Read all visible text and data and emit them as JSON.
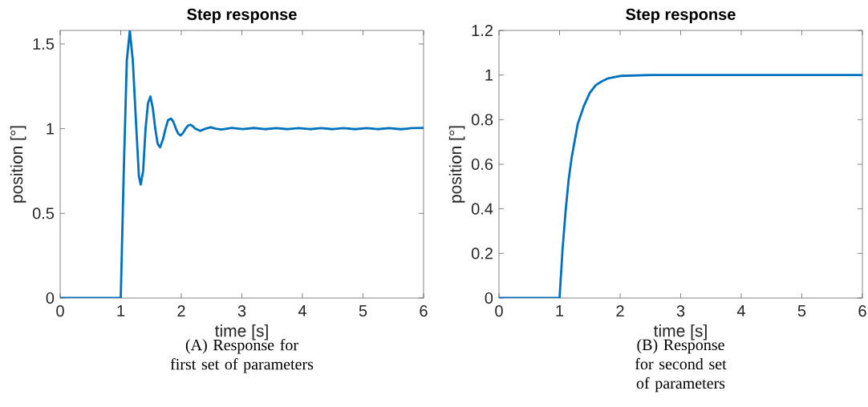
{
  "chart_data": [
    {
      "type": "line",
      "title": "Step response",
      "xlabel": "time [s]",
      "ylabel": "position [°]",
      "annotations": [
        "(A) Response for first set of parameters"
      ],
      "xlim": [
        0,
        6
      ],
      "ylim": [
        0,
        1.58
      ],
      "xticks": [
        0,
        1,
        2,
        3,
        4,
        5,
        6
      ],
      "yticks": [
        0,
        0.5,
        1,
        1.5
      ],
      "x": [
        0,
        1.0,
        1.05,
        1.1,
        1.15,
        1.2,
        1.25,
        1.3,
        1.33,
        1.37,
        1.41,
        1.45,
        1.49,
        1.53,
        1.57,
        1.61,
        1.65,
        1.7,
        1.74,
        1.78,
        1.83,
        1.87,
        1.91,
        1.95,
        1.99,
        2.03,
        2.07,
        2.11,
        2.15,
        2.19,
        2.23,
        2.31,
        2.4,
        2.48,
        2.57,
        2.66,
        2.75,
        2.83,
        3.01,
        3.2,
        3.38,
        3.57,
        3.76,
        3.94,
        4.12,
        4.31,
        4.5,
        4.68,
        4.87,
        5.06,
        5.24,
        5.43,
        5.62,
        5.81,
        6
      ],
      "series": [
        {
          "color": "#0072bd",
          "values": [
            0,
            0,
            0.75,
            1.4,
            1.58,
            1.4,
            1.05,
            0.72,
            0.67,
            0.75,
            1.0,
            1.15,
            1.19,
            1.12,
            1.0,
            0.91,
            0.89,
            0.94,
            1.0,
            1.05,
            1.06,
            1.04,
            1.0,
            0.97,
            0.96,
            0.975,
            1.0,
            1.018,
            1.023,
            1.015,
            1.0,
            0.987,
            1.0,
            1.008,
            1.0,
            0.995,
            1.0,
            1.005,
            0.997,
            1.004,
            0.997,
            1.003,
            0.997,
            1.003,
            0.997,
            1.003,
            0.997,
            1.003,
            0.997,
            1.003,
            0.997,
            1.003,
            0.997,
            1.003,
            1.005
          ]
        }
      ]
    },
    {
      "type": "line",
      "title": "Step response",
      "xlabel": "time [s]",
      "ylabel": "position [°]",
      "annotations": [
        "(B) Response for second set of parameters"
      ],
      "xlim": [
        0,
        6
      ],
      "ylim": [
        0,
        1.2
      ],
      "xticks": [
        0,
        1,
        2,
        3,
        4,
        5,
        6
      ],
      "yticks": [
        0,
        0.2,
        0.4,
        0.6,
        0.8,
        1,
        1.2
      ],
      "x": [
        0,
        1.0,
        1.05,
        1.1,
        1.15,
        1.2,
        1.3,
        1.4,
        1.5,
        1.6,
        1.7,
        1.8,
        2.0,
        2.5,
        6
      ],
      "series": [
        {
          "color": "#0072bd",
          "values": [
            0,
            0,
            0.22,
            0.39,
            0.53,
            0.63,
            0.78,
            0.86,
            0.92,
            0.955,
            0.972,
            0.985,
            0.996,
            1.0,
            1.0
          ]
        }
      ]
    }
  ]
}
